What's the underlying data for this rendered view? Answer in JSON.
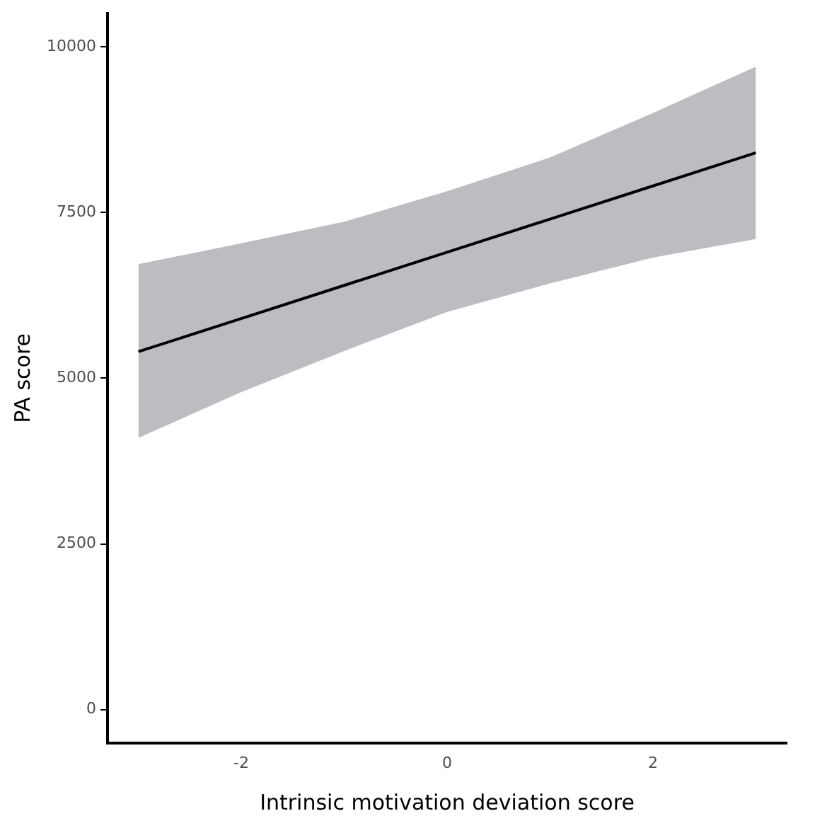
{
  "chart_data": {
    "type": "line",
    "xlabel": "Intrinsic motivation deviation score",
    "ylabel": "PA score",
    "x": [
      -3,
      -2,
      -1,
      0,
      1,
      2,
      3
    ],
    "series": [
      {
        "color": "#000000",
        "values": [
          5400,
          5900,
          6400,
          6900,
          7400,
          7900,
          8400
        ],
        "lower": [
          4100,
          4790,
          5410,
          6000,
          6430,
          6820,
          7100
        ],
        "upper": [
          6720,
          7035,
          7360,
          7820,
          8330,
          9000,
          9700
        ]
      }
    ],
    "xlim": [
      -3.3,
      3.3
    ],
    "ylim": [
      -500,
      10500
    ],
    "xticks": [
      -2,
      0,
      2
    ],
    "yticks": [
      0,
      2500,
      5000,
      7500,
      10000
    ],
    "grid": false,
    "legend": false,
    "marker": "none",
    "line_style": "solid"
  }
}
